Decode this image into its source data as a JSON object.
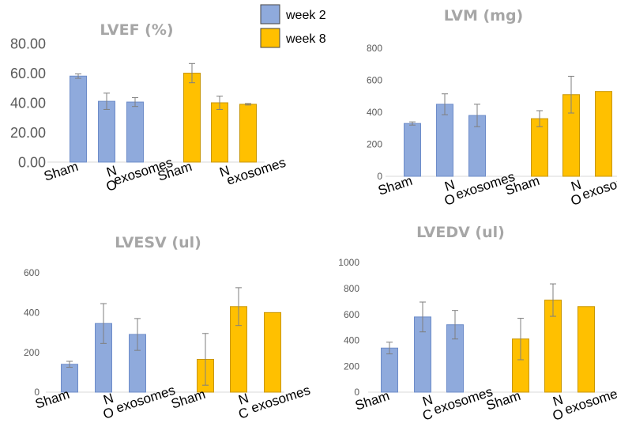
{
  "legend": [
    {
      "label": "week 2",
      "color": "#8faadc"
    },
    {
      "label": "week 8",
      "color": "#ffc000"
    }
  ],
  "chart_data": [
    {
      "type": "bar",
      "title": "LVEF (%)",
      "categories": [
        "Sham",
        "N",
        "exosomes",
        "Sham",
        "N",
        "exosomes"
      ],
      "overlap_marks": [
        "",
        "O",
        "",
        "",
        "",
        ""
      ],
      "groups": [
        "week 2",
        "week 2",
        "week 2",
        "week 8",
        "week 8",
        "week 8"
      ],
      "values": [
        58,
        41,
        40.5,
        60,
        40,
        39
      ],
      "errors": [
        1.5,
        5.5,
        3,
        6.5,
        4.5,
        0.5
      ],
      "ylim": [
        0,
        80
      ],
      "yticks": [
        "0.00",
        "20.00",
        "40.00",
        "60.00",
        "80.00"
      ],
      "grid": false
    },
    {
      "type": "bar",
      "title": "LVM (mg)",
      "categories": [
        "Sham",
        "N",
        "exosomes",
        "Sham",
        "N",
        "exosomes"
      ],
      "overlap_marks": [
        "",
        "O",
        "",
        "",
        "O",
        ""
      ],
      "groups": [
        "week 2",
        "week 2",
        "week 2",
        "week 8",
        "week 8",
        "week 8"
      ],
      "values": [
        330,
        450,
        380,
        360,
        510,
        530
      ],
      "errors": [
        10,
        65,
        70,
        50,
        115,
        0
      ],
      "ylim": [
        0,
        800
      ],
      "yticks": [
        "0",
        "200",
        "400",
        "600",
        "800"
      ],
      "grid": false
    },
    {
      "type": "bar",
      "title": "LVESV (ul)",
      "categories": [
        "Sham",
        "N",
        "exosomes",
        "Sham",
        "N",
        "exosomes"
      ],
      "overlap_marks": [
        "",
        "O",
        "",
        "",
        "C",
        ""
      ],
      "groups": [
        "week 2",
        "week 2",
        "week 2",
        "week 8",
        "week 8",
        "week 8"
      ],
      "values": [
        140,
        345,
        290,
        165,
        430,
        400
      ],
      "errors": [
        15,
        100,
        80,
        130,
        95,
        0
      ],
      "ylim": [
        0,
        600
      ],
      "yticks": [
        "0",
        "200",
        "400",
        "600"
      ],
      "grid": false
    },
    {
      "type": "bar",
      "title": "LVEDV (ul)",
      "categories": [
        "Sham",
        "N",
        "exosomes",
        "Sham",
        "N",
        "exosomes"
      ],
      "overlap_marks": [
        "",
        "C",
        "",
        "",
        "O",
        ""
      ],
      "groups": [
        "week 2",
        "week 2",
        "week 2",
        "week 8",
        "week 8",
        "week 8"
      ],
      "values": [
        340,
        580,
        520,
        410,
        710,
        660
      ],
      "errors": [
        45,
        115,
        110,
        160,
        125,
        0
      ],
      "ylim": [
        0,
        1000
      ],
      "yticks": [
        "0",
        "200",
        "400",
        "600",
        "800",
        "1000"
      ],
      "grid": false
    }
  ]
}
